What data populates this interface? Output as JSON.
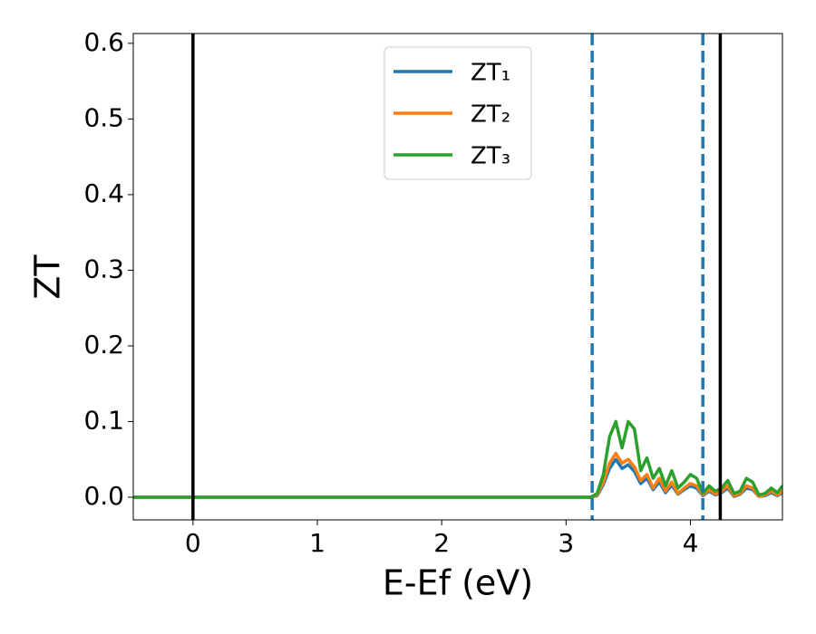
{
  "chart_data": {
    "type": "line",
    "xlabel": "E-Ef (eV)",
    "ylabel": "ZT",
    "xlim": [
      -0.48,
      4.74
    ],
    "ylim": [
      -0.03,
      0.613
    ],
    "xticks": [
      0,
      1,
      2,
      3,
      4
    ],
    "yticks": [
      {
        "value": 0,
        "label": "0.0"
      },
      0.1,
      0.2,
      0.3,
      0.4,
      0.5,
      0.6
    ],
    "legend": "upper center",
    "x": [
      -0.48,
      3.0,
      3.2,
      3.25,
      3.3,
      3.35,
      3.4,
      3.45,
      3.5,
      3.55,
      3.6,
      3.65,
      3.7,
      3.75,
      3.8,
      3.85,
      3.9,
      3.95,
      4.0,
      4.05,
      4.1,
      4.15,
      4.2,
      4.25,
      4.3,
      4.35,
      4.4,
      4.45,
      4.5,
      4.55,
      4.6,
      4.65,
      4.7,
      4.74
    ],
    "series": [
      {
        "name": "ZT₁",
        "color": "#1f77b4",
        "values": [
          0,
          0,
          0,
          0.002,
          0.017,
          0.038,
          0.05,
          0.038,
          0.043,
          0.034,
          0.018,
          0.025,
          0.01,
          0.02,
          0.006,
          0.016,
          0.004,
          0.01,
          0.015,
          0.012,
          0.002,
          0.008,
          0.003,
          0.006,
          0.012,
          0.001,
          0.004,
          0.012,
          0.01,
          0.001,
          0.002,
          0.006,
          0.002,
          0.006
        ]
      },
      {
        "name": "ZT₂",
        "color": "#ff7f0e",
        "values": [
          0,
          0,
          0,
          0.003,
          0.02,
          0.045,
          0.058,
          0.045,
          0.05,
          0.04,
          0.022,
          0.03,
          0.012,
          0.025,
          0.008,
          0.02,
          0.005,
          0.012,
          0.018,
          0.015,
          0.003,
          0.01,
          0.004,
          0.008,
          0.015,
          0.002,
          0.005,
          0.015,
          0.012,
          0.001,
          0.003,
          0.008,
          0.003,
          0.008
        ]
      },
      {
        "name": "ZT₃",
        "color": "#2ca02c",
        "values": [
          0,
          0,
          0,
          0.005,
          0.03,
          0.08,
          0.1,
          0.065,
          0.1,
          0.09,
          0.035,
          0.052,
          0.025,
          0.038,
          0.015,
          0.035,
          0.012,
          0.02,
          0.03,
          0.025,
          0.005,
          0.015,
          0.008,
          0.012,
          0.022,
          0.005,
          0.008,
          0.025,
          0.02,
          0.003,
          0.005,
          0.012,
          0.006,
          0.015
        ]
      }
    ],
    "vlines": [
      {
        "x": 0,
        "color": "#000000",
        "style": "solid"
      },
      {
        "x": 4.24,
        "color": "#000000",
        "style": "solid"
      },
      {
        "x": 3.21,
        "color": "#1f77b4",
        "style": "dashed"
      },
      {
        "x": 4.1,
        "color": "#1f77b4",
        "style": "dashed"
      }
    ]
  }
}
